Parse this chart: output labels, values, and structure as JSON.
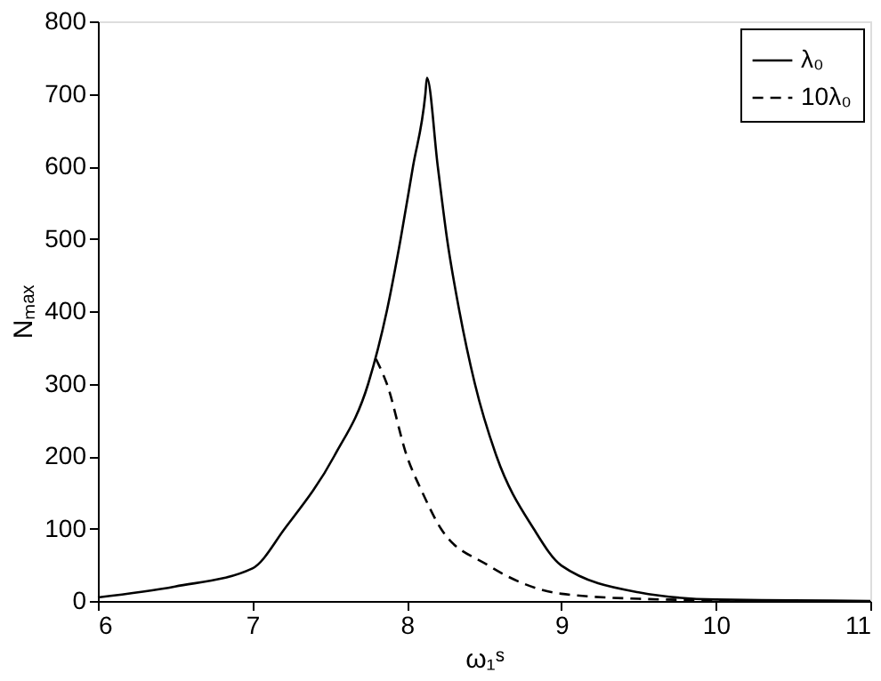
{
  "chart_data": {
    "type": "line",
    "xlabel": "ω₁ˢ",
    "ylabel": "Nₘₐₓ",
    "xlim": [
      6,
      11
    ],
    "ylim": [
      0,
      800
    ],
    "xticks": [
      6,
      7,
      8,
      9,
      10,
      11
    ],
    "yticks": [
      0,
      100,
      200,
      300,
      400,
      500,
      600,
      700,
      800
    ],
    "grid": false,
    "legend": "top right",
    "marker": "none",
    "series": [
      {
        "name": "λ₀",
        "color": "#000000",
        "line_style": "solid",
        "x": [
          6,
          6.5,
          7,
          7.21,
          7.53,
          7.75,
          7.87,
          7.96,
          8.04,
          8.12,
          8.13,
          8.2,
          8.26,
          8.34,
          8.44,
          8.58,
          8.82,
          9,
          9.5,
          10,
          10.5,
          11
        ],
        "values": [
          5,
          20,
          45,
          100,
          200,
          300,
          400,
          500,
          600,
          700,
          722,
          600,
          500,
          400,
          300,
          200,
          100,
          49,
          12,
          2,
          1,
          0
        ]
      },
      {
        "name": "10λ₀",
        "color": "#000000",
        "line_style": "dashed",
        "x": [
          7.8,
          7.87,
          8,
          8.1,
          8.22,
          8.52,
          9,
          9.5,
          10,
          10.4
        ],
        "values": [
          334,
          300,
          200,
          150,
          100,
          50,
          10,
          3,
          1,
          0
        ]
      }
    ]
  }
}
